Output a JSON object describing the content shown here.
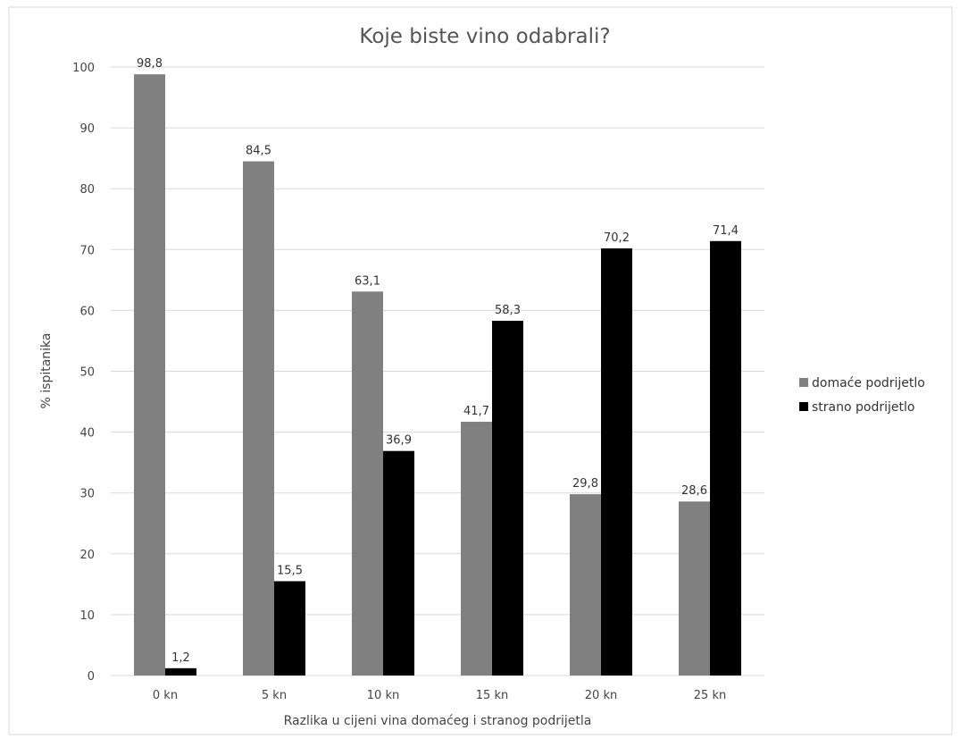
{
  "chart_data": {
    "type": "bar",
    "title": "Koje biste vino odabrali?",
    "xlabel": "Razlika u cijeni vina domaćeg i stranog podrijetla",
    "ylabel": "% ispitanika",
    "ylim": [
      0,
      100
    ],
    "yticks": [
      0,
      10,
      20,
      30,
      40,
      50,
      60,
      70,
      80,
      90,
      100
    ],
    "categories": [
      "0 kn",
      "5 kn",
      "10 kn",
      "15 kn",
      "20 kn",
      "25 kn"
    ],
    "series": [
      {
        "name": "domaće podrijetlo",
        "color": "#808080",
        "values": [
          98.8,
          84.5,
          63.1,
          41.7,
          29.8,
          28.6
        ],
        "labels": [
          "98,8",
          "84,5",
          "63,1",
          "41,7",
          "29,8",
          "28,6"
        ]
      },
      {
        "name": "strano podrijetlo",
        "color": "#000000",
        "values": [
          1.2,
          15.5,
          36.9,
          58.3,
          70.2,
          71.4
        ],
        "labels": [
          "1,2",
          "15,5",
          "36,9",
          "58,3",
          "70,2",
          "71,4"
        ]
      }
    ],
    "grid": true,
    "legend_position": "right"
  }
}
